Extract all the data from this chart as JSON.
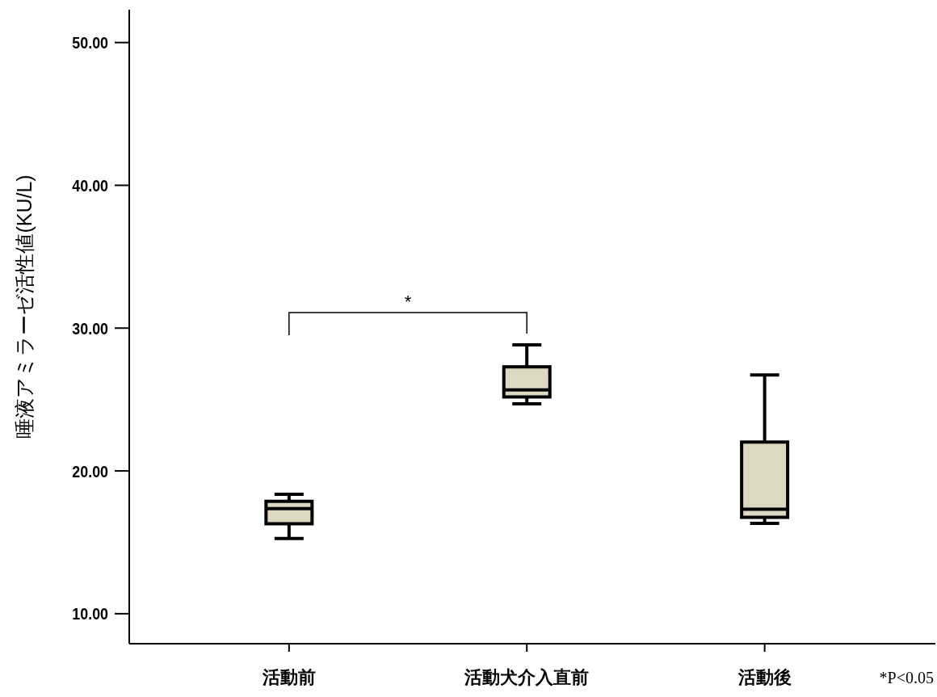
{
  "chart_data": {
    "type": "box",
    "ylabel": "唾液アミラーゼ活性値(KU/L)",
    "categories": [
      "活動前",
      "活動犬介入直前",
      "活動後"
    ],
    "color": "#ddd8c2",
    "boxes": [
      {
        "low": 15.26,
        "q1": 16.3,
        "median": 17.36,
        "q3": 17.87,
        "high": 18.36
      },
      {
        "low": 24.7,
        "q1": 25.18,
        "median": 25.68,
        "q3": 27.29,
        "high": 28.83
      },
      {
        "low": 16.33,
        "q1": 16.75,
        "median": 17.32,
        "q3": 22.02,
        "high": 26.72
      }
    ],
    "ylim": [
      7.9,
      52.3
    ],
    "yticks": [
      {
        "value": 10,
        "label": "10.00"
      },
      {
        "value": 20,
        "label": "20.00"
      },
      {
        "value": 30,
        "label": "30.00"
      },
      {
        "value": 40,
        "label": "40.00"
      },
      {
        "value": 50,
        "label": "50.00"
      }
    ],
    "annotations": [
      "*",
      "*P<0.05"
    ]
  }
}
